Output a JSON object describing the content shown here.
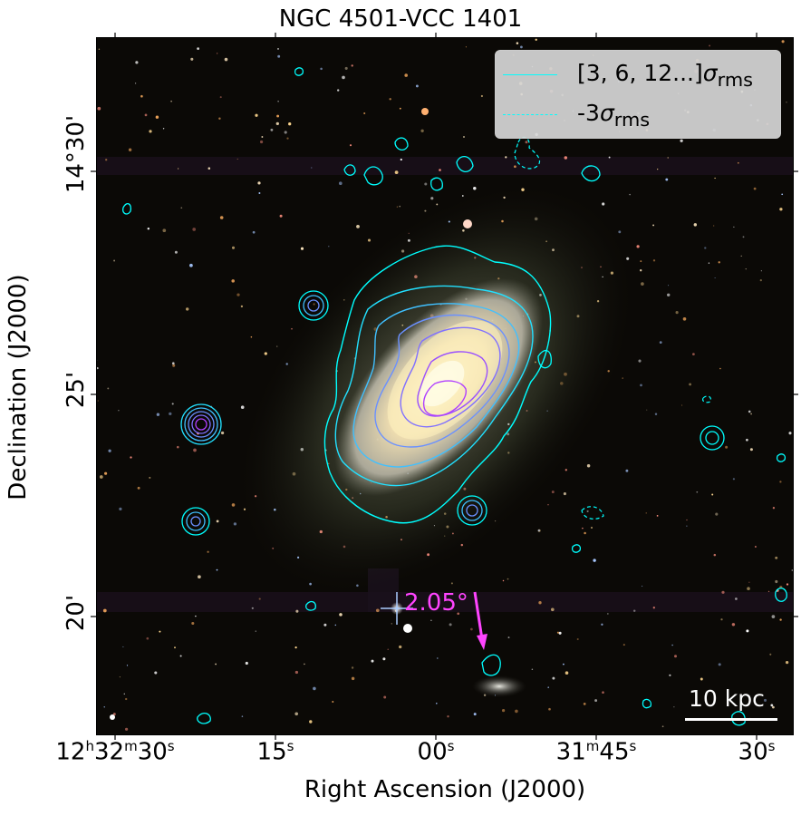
{
  "figure": {
    "title": "NGC 4501-VCC 1401",
    "xlabel": "Right Ascension (J2000)",
    "ylabel": "Declination (J2000)",
    "xticks": [
      {
        "h": "12",
        "m": "32",
        "s": "30"
      },
      {
        "s": "15"
      },
      {
        "s": "00"
      },
      {
        "m": "31",
        "s": "45"
      },
      {
        "s": "30"
      }
    ],
    "yticks": [
      "14°30'",
      "25'",
      "20'"
    ],
    "legend": [
      {
        "label_main": "[3, 6, 12...]",
        "sigma": "σ",
        "sub": "rms",
        "style": "solid"
      },
      {
        "label_main": "-3",
        "sigma": "σ",
        "sub": "rms",
        "style": "dashed"
      }
    ],
    "scale_bar_label": "10 kpc",
    "arrow_label": "2.05°",
    "colors": {
      "contour_outer": "#00ffff",
      "contour_inner": "#a040ff",
      "arrow": "#ff44ff",
      "sky": "#0b0906",
      "galaxy": "#f4e6b4"
    }
  }
}
